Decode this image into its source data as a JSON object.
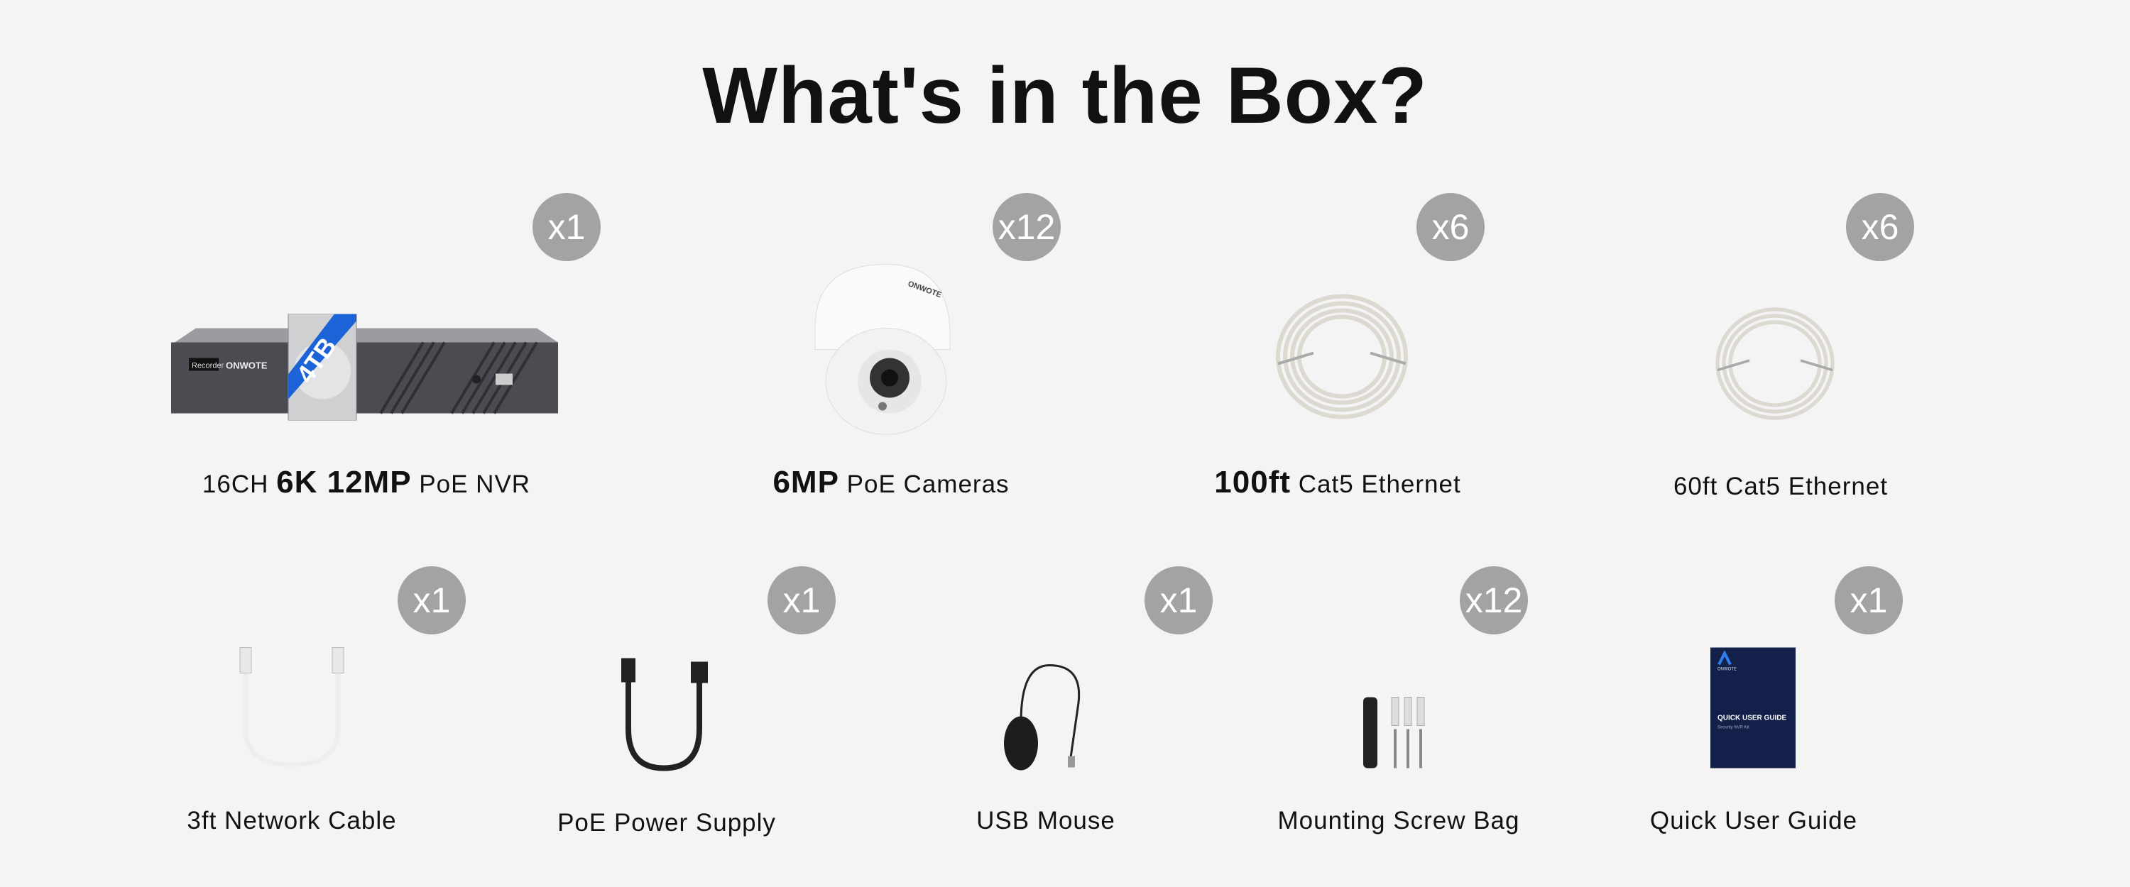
{
  "title": "What's in the Box?",
  "items": [
    {
      "label_pre": "16CH ",
      "label_bold": "6K 12MP",
      "label_post": " PoE NVR",
      "qty": "x1",
      "icon": "nvr-with-hdd",
      "hdd_label": "4TB",
      "brand": "ONWOTE",
      "panel_label": "Recorder"
    },
    {
      "label_pre": "",
      "label_bold": "6MP",
      "label_post": " PoE Cameras",
      "qty": "x12",
      "icon": "dome-camera",
      "brand": "ONWOTE"
    },
    {
      "label_pre": "",
      "label_bold": "100ft",
      "label_post": " Cat5 Ethernet",
      "qty": "x6",
      "icon": "cable-coil"
    },
    {
      "label_pre": "",
      "label_bold": "",
      "label_post": "60ft Cat5 Ethernet",
      "qty": "x6",
      "icon": "cable-coil"
    },
    {
      "label": "3ft Network Cable",
      "qty": "x1",
      "icon": "network-cable"
    },
    {
      "label": "PoE Power Supply",
      "qty": "x1",
      "icon": "power-supply"
    },
    {
      "label": "USB Mouse",
      "qty": "x1",
      "icon": "mouse"
    },
    {
      "label": "Mounting Screw Bag",
      "qty": "x12",
      "icon": "screws"
    },
    {
      "label": "Quick User Guide",
      "qty": "x1",
      "icon": "guide-booklet",
      "guide_title": "QUICK USER GUIDE",
      "guide_subtitle": "Security NVR Kit",
      "brand": "ONWOTE"
    }
  ],
  "colors": {
    "background": "#f4f4f4",
    "badge": "#a3a3a3",
    "text": "#111111",
    "guide": "#13214a",
    "hdd_band": "#1b63d6"
  }
}
